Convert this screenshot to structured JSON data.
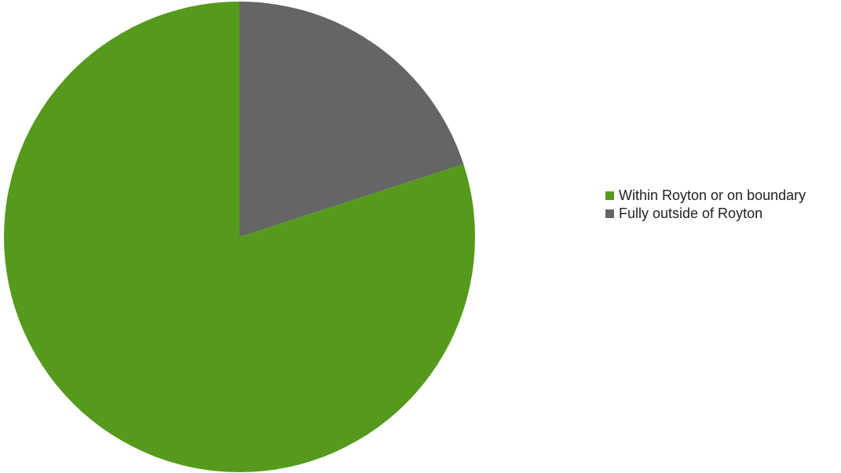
{
  "chart_data": {
    "type": "pie",
    "categories": [
      "Within Royton or on boundary",
      "Fully outside of Royton"
    ],
    "values": [
      80,
      20
    ],
    "colors": [
      "#559a1c",
      "#656565"
    ],
    "legend_position": "right"
  },
  "legend": {
    "items": [
      {
        "label": "Within Royton or on boundary",
        "color": "#559a1c"
      },
      {
        "label": "Fully outside of Royton",
        "color": "#656565"
      }
    ]
  }
}
